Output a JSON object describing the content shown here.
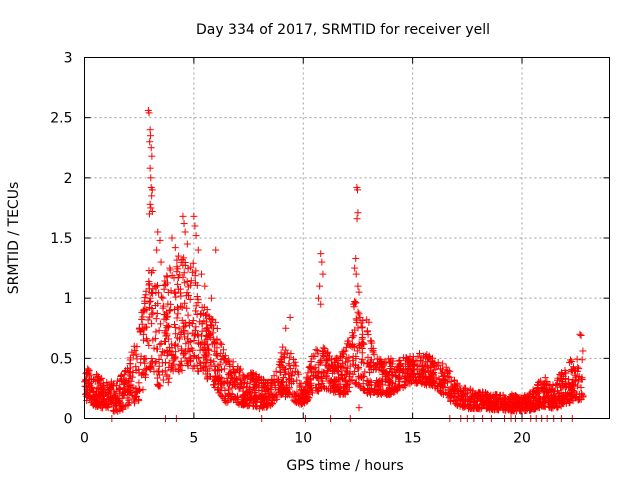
{
  "chart_data": {
    "type": "scatter",
    "title": "Day 334 of 2017, SRMTID for receiver yell",
    "xlabel": "GPS time / hours",
    "ylabel": "SRMTID / TECUs",
    "xlim": [
      0,
      24
    ],
    "ylim": [
      0,
      3
    ],
    "x_ticks": [
      0,
      5,
      10,
      15,
      20
    ],
    "x_tick_labels": [
      "0",
      "5",
      "10",
      "15",
      "20"
    ],
    "y_ticks": [
      0,
      0.5,
      1,
      1.5,
      2,
      2.5,
      3
    ],
    "y_tick_labels": [
      "0",
      "0.5",
      "1",
      "1.5",
      "2",
      "2.5",
      "3"
    ],
    "grid": true,
    "marker": "plus",
    "color": "#ff0000",
    "envelope": {
      "description": "approximate upper/lower bounds of the dense scatter cloud (x in hours, y in TECU)",
      "x": [
        0.0,
        0.5,
        1.0,
        1.5,
        2.0,
        2.5,
        2.8,
        3.0,
        3.2,
        3.5,
        4.0,
        4.5,
        5.0,
        5.5,
        6.0,
        6.5,
        7.0,
        7.5,
        8.0,
        8.5,
        9.0,
        9.5,
        10.0,
        10.5,
        11.0,
        11.5,
        12.0,
        12.3,
        12.6,
        13.0,
        13.5,
        14.0,
        14.5,
        15.0,
        15.5,
        16.0,
        16.5,
        17.0,
        17.5,
        18.0,
        18.5,
        19.0,
        19.5,
        20.0,
        20.5,
        21.0,
        21.5,
        22.0,
        22.5,
        22.8
      ],
      "upper": [
        0.45,
        0.38,
        0.3,
        0.32,
        0.45,
        0.8,
        1.1,
        1.3,
        1.2,
        1.1,
        1.3,
        1.35,
        1.3,
        0.95,
        0.8,
        0.5,
        0.45,
        0.4,
        0.35,
        0.3,
        0.6,
        0.55,
        0.25,
        0.6,
        0.6,
        0.5,
        0.6,
        1.0,
        0.9,
        0.7,
        0.5,
        0.5,
        0.5,
        0.55,
        0.55,
        0.5,
        0.45,
        0.3,
        0.25,
        0.25,
        0.2,
        0.2,
        0.2,
        0.18,
        0.25,
        0.35,
        0.3,
        0.45,
        0.55,
        0.6
      ],
      "lower": [
        0.15,
        0.1,
        0.08,
        0.05,
        0.1,
        0.15,
        0.3,
        0.4,
        0.3,
        0.2,
        0.35,
        0.4,
        0.4,
        0.35,
        0.25,
        0.12,
        0.12,
        0.1,
        0.08,
        0.1,
        0.2,
        0.15,
        0.1,
        0.2,
        0.25,
        0.2,
        0.2,
        0.3,
        0.25,
        0.2,
        0.2,
        0.2,
        0.25,
        0.3,
        0.28,
        0.25,
        0.18,
        0.1,
        0.08,
        0.08,
        0.07,
        0.07,
        0.06,
        0.06,
        0.07,
        0.1,
        0.08,
        0.12,
        0.15,
        0.15
      ]
    },
    "spikes": [
      {
        "x": 2.92,
        "y": 2.56
      },
      {
        "x": 2.95,
        "y": 2.54
      },
      {
        "x": 3.0,
        "y": 2.4
      },
      {
        "x": 3.02,
        "y": 2.35
      },
      {
        "x": 2.98,
        "y": 2.3
      },
      {
        "x": 3.05,
        "y": 2.25
      },
      {
        "x": 3.08,
        "y": 2.18
      },
      {
        "x": 3.0,
        "y": 2.08
      },
      {
        "x": 3.03,
        "y": 2.0
      },
      {
        "x": 3.05,
        "y": 1.92
      },
      {
        "x": 3.1,
        "y": 1.9
      },
      {
        "x": 3.07,
        "y": 1.85
      },
      {
        "x": 3.0,
        "y": 1.78
      },
      {
        "x": 3.03,
        "y": 1.75
      },
      {
        "x": 3.1,
        "y": 1.72
      },
      {
        "x": 2.97,
        "y": 1.7
      },
      {
        "x": 3.35,
        "y": 1.55
      },
      {
        "x": 3.45,
        "y": 1.48
      },
      {
        "x": 3.3,
        "y": 1.4
      },
      {
        "x": 3.5,
        "y": 1.3
      },
      {
        "x": 4.0,
        "y": 1.5
      },
      {
        "x": 4.15,
        "y": 1.42
      },
      {
        "x": 4.3,
        "y": 1.35
      },
      {
        "x": 3.9,
        "y": 1.25
      },
      {
        "x": 4.5,
        "y": 1.68
      },
      {
        "x": 4.55,
        "y": 1.62
      },
      {
        "x": 4.6,
        "y": 1.55
      },
      {
        "x": 4.7,
        "y": 1.45
      },
      {
        "x": 5.0,
        "y": 1.68
      },
      {
        "x": 5.05,
        "y": 1.6
      },
      {
        "x": 5.1,
        "y": 1.52
      },
      {
        "x": 5.2,
        "y": 1.4
      },
      {
        "x": 5.35,
        "y": 1.2
      },
      {
        "x": 5.5,
        "y": 1.1
      },
      {
        "x": 6.0,
        "y": 1.4
      },
      {
        "x": 5.8,
        "y": 1.0
      },
      {
        "x": 9.4,
        "y": 0.84
      },
      {
        "x": 9.2,
        "y": 0.75
      },
      {
        "x": 10.8,
        "y": 1.37
      },
      {
        "x": 10.85,
        "y": 1.3
      },
      {
        "x": 10.9,
        "y": 1.2
      },
      {
        "x": 10.75,
        "y": 1.1
      },
      {
        "x": 10.7,
        "y": 1.0
      },
      {
        "x": 10.8,
        "y": 0.95
      },
      {
        "x": 12.45,
        "y": 1.92
      },
      {
        "x": 12.48,
        "y": 1.9
      },
      {
        "x": 12.5,
        "y": 1.71
      },
      {
        "x": 12.46,
        "y": 1.66
      },
      {
        "x": 12.4,
        "y": 1.33
      },
      {
        "x": 12.35,
        "y": 1.25
      },
      {
        "x": 12.42,
        "y": 1.2
      },
      {
        "x": 12.5,
        "y": 1.1
      },
      {
        "x": 12.55,
        "y": 1.05
      },
      {
        "x": 12.3,
        "y": 0.95
      },
      {
        "x": 12.9,
        "y": 0.82
      },
      {
        "x": 13.0,
        "y": 0.8
      },
      {
        "x": 12.55,
        "y": 0.09
      },
      {
        "x": 22.65,
        "y": 0.7
      },
      {
        "x": 22.7,
        "y": 0.69
      }
    ],
    "zero_points": [
      1.25,
      3.7,
      4.2,
      8.1,
      10.1,
      11.25,
      12.15,
      16.7,
      17.2,
      17.5,
      17.8,
      18.2,
      18.6,
      19.2,
      19.5,
      19.7,
      20.0,
      20.4,
      20.65,
      20.9,
      21.15,
      21.45,
      21.8,
      22.3
    ]
  }
}
